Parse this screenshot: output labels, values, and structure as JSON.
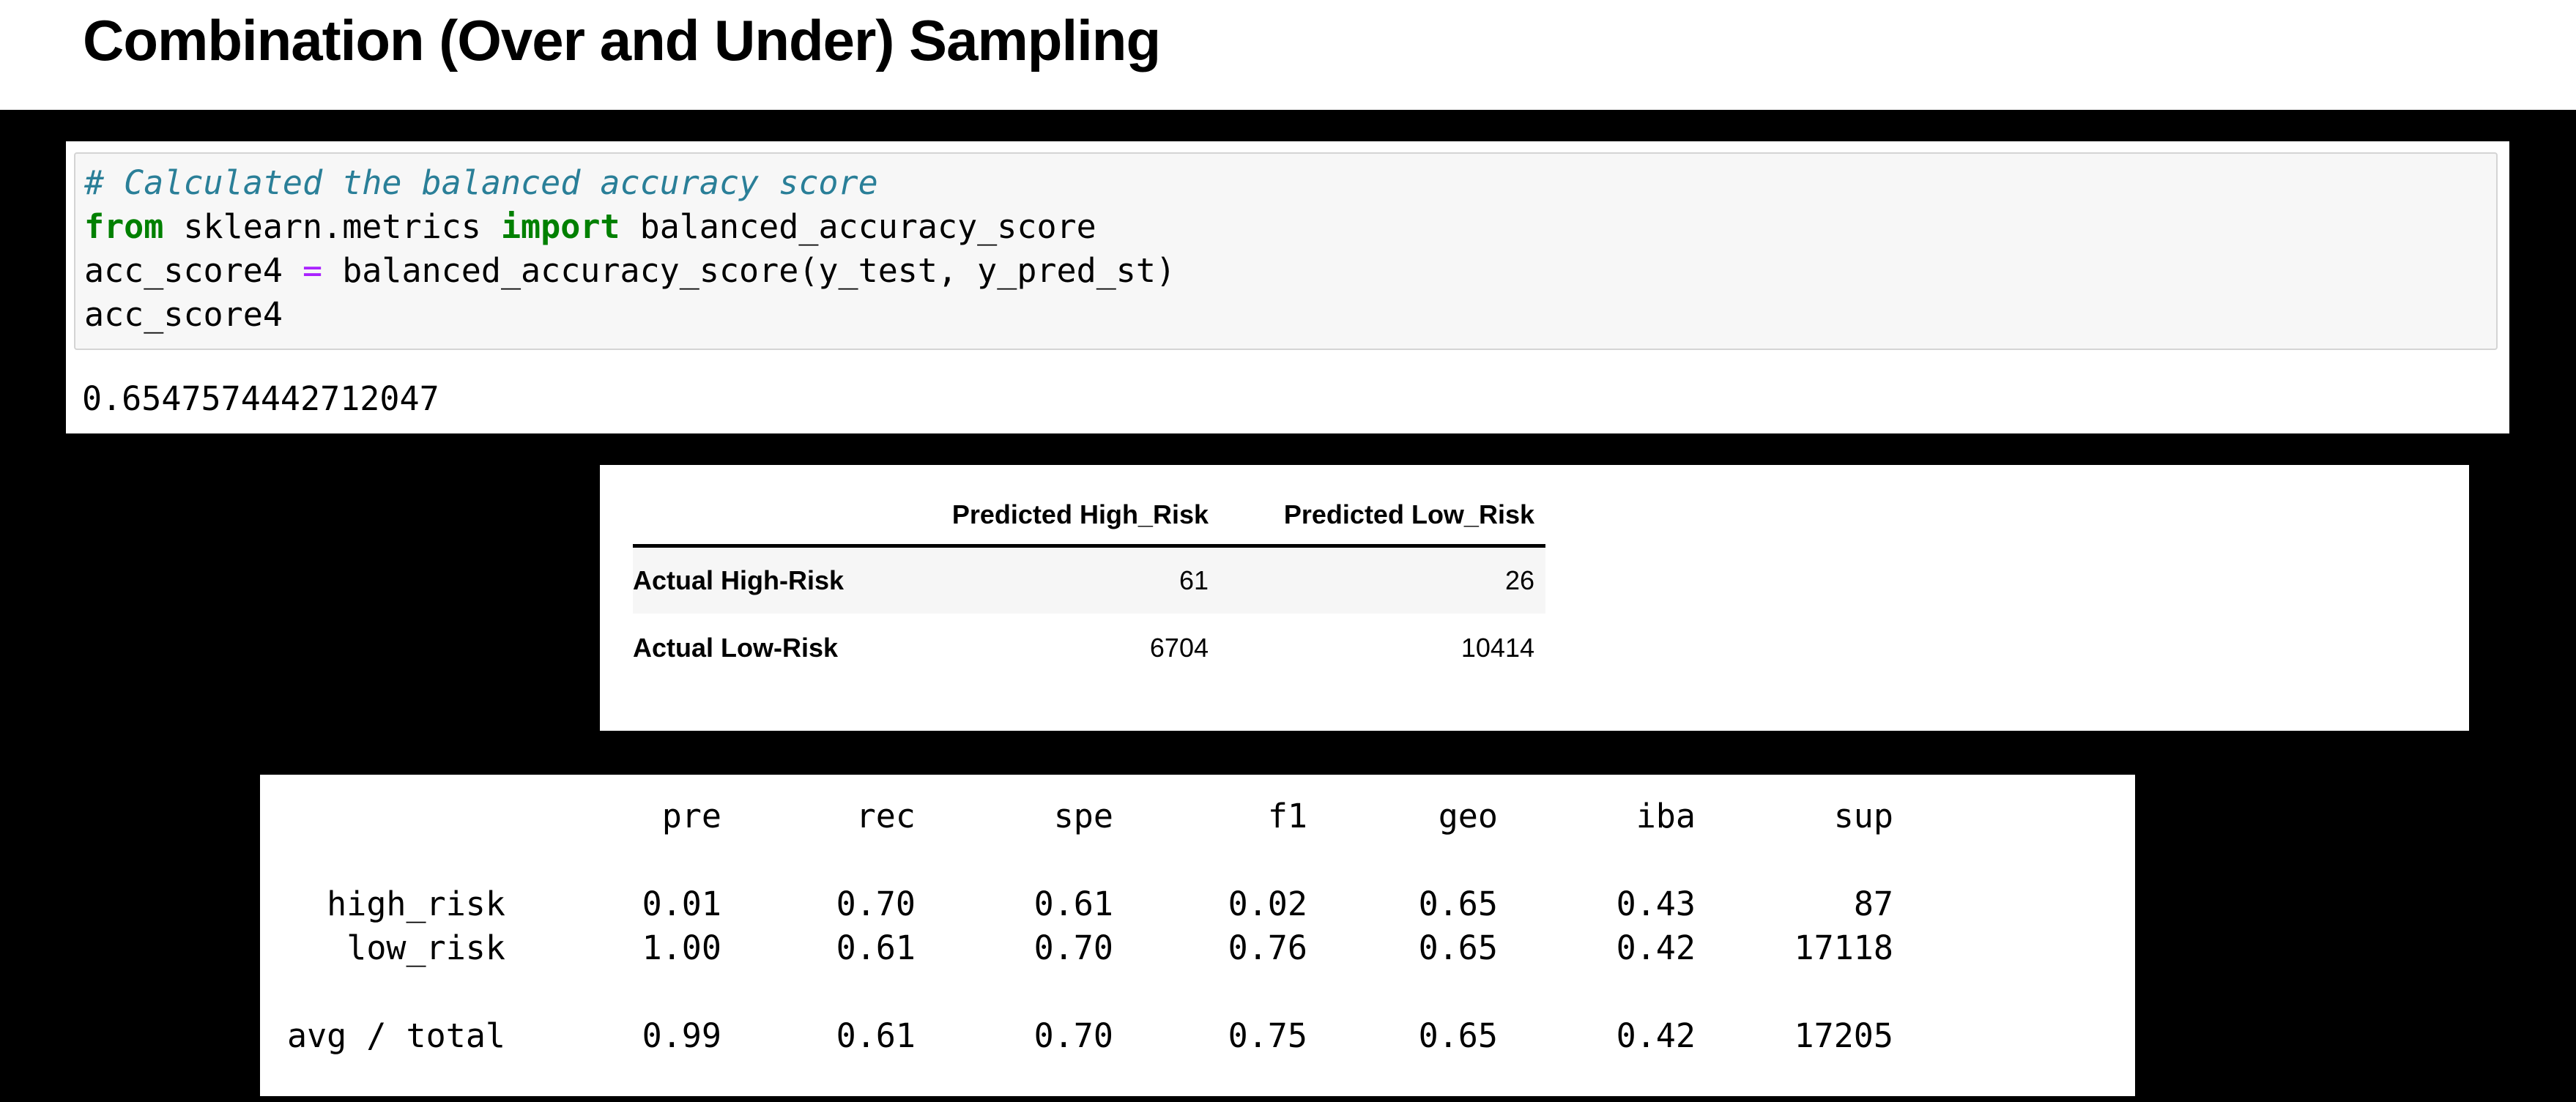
{
  "header": {
    "title": "Combination (Over and Under) Sampling"
  },
  "code_cell": {
    "lines": [
      {
        "tokens": [
          [
            "comment",
            "# Calculated the balanced accuracy score"
          ]
        ]
      },
      {
        "tokens": [
          [
            "keyword",
            "from"
          ],
          [
            "plain",
            " sklearn.metrics "
          ],
          [
            "keyword",
            "import"
          ],
          [
            "plain",
            " balanced_accuracy_score"
          ]
        ]
      },
      {
        "tokens": [
          [
            "plain",
            "acc_score4 "
          ],
          [
            "operator",
            "="
          ],
          [
            "plain",
            " balanced_accuracy_score(y_test, y_pred_st)"
          ]
        ]
      },
      {
        "tokens": [
          [
            "plain",
            "acc_score4"
          ]
        ]
      }
    ],
    "output_value": "0.6547574442712047"
  },
  "confusion_matrix": {
    "column_headers": [
      "Predicted High_Risk",
      "Predicted Low_Risk"
    ],
    "rows": [
      {
        "label": "Actual High-Risk",
        "values": [
          "61",
          "26"
        ]
      },
      {
        "label": "Actual Low-Risk",
        "values": [
          "6704",
          "10414"
        ]
      }
    ]
  },
  "classification_report": {
    "column_headers": [
      "pre",
      "rec",
      "spe",
      "f1",
      "geo",
      "iba",
      "sup"
    ],
    "class_rows": [
      {
        "label": "high_risk",
        "values": [
          "0.01",
          "0.70",
          "0.61",
          "0.02",
          "0.65",
          "0.43",
          "87"
        ]
      },
      {
        "label": "low_risk",
        "values": [
          "1.00",
          "0.61",
          "0.70",
          "0.76",
          "0.65",
          "0.42",
          "17118"
        ]
      }
    ],
    "total_row": {
      "label": "avg / total",
      "values": [
        "0.99",
        "0.61",
        "0.70",
        "0.75",
        "0.65",
        "0.42",
        "17205"
      ]
    }
  },
  "colors": {
    "background": "#000000",
    "panel": "#ffffff",
    "code_box_bg": "#f7f7f7",
    "code_box_border": "#d4d4d4",
    "comment": "#2a7f98",
    "keyword": "#008000",
    "operator": "#aa22ff",
    "table_stripe": "#f6f6f6",
    "text": "#000000"
  }
}
